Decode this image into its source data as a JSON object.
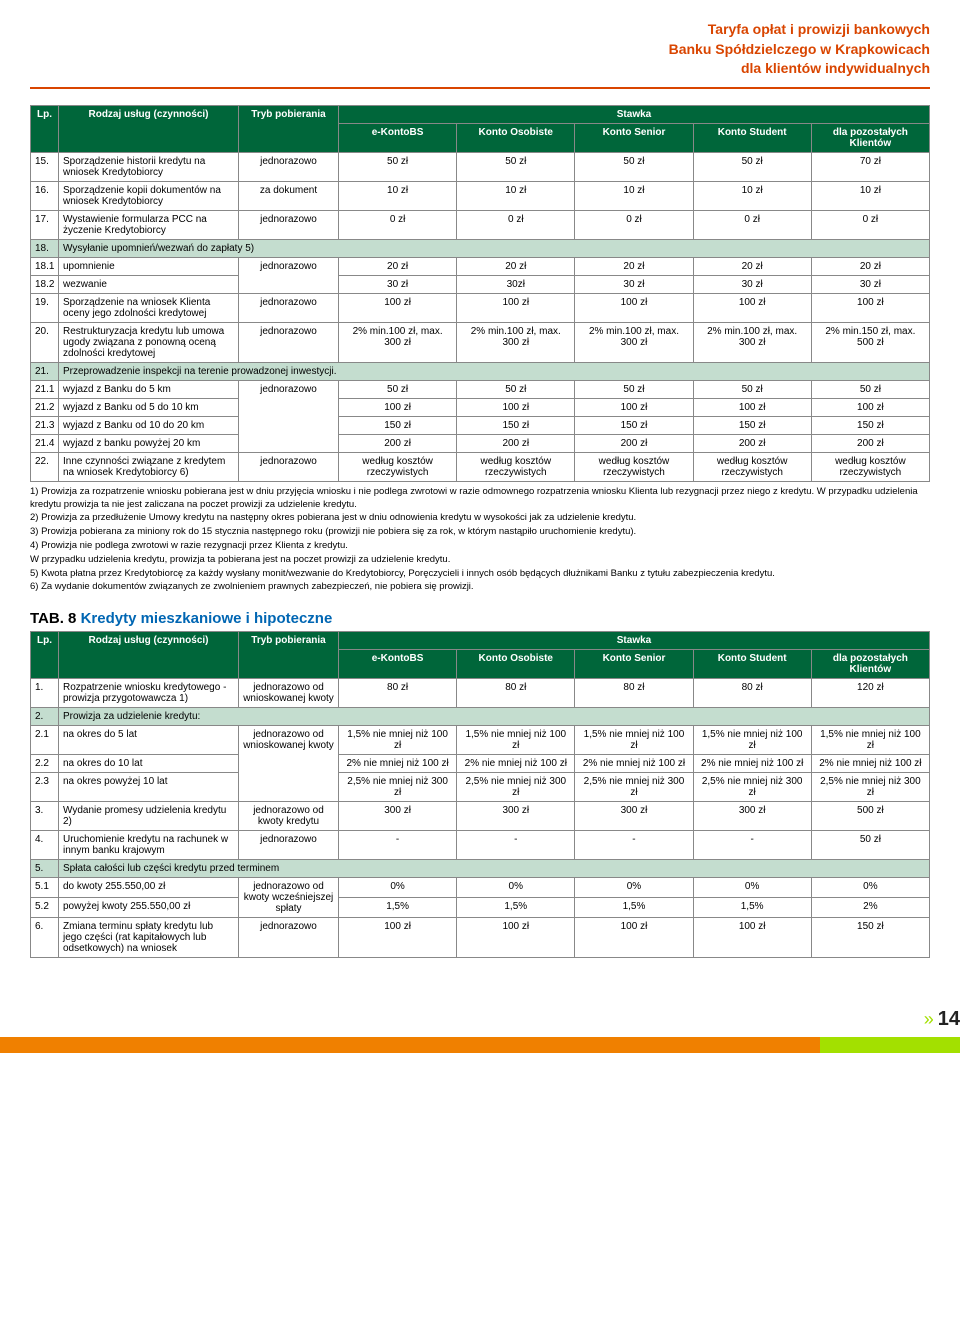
{
  "header": {
    "line1": "Taryfa opłat i prowizji bankowych",
    "line2": "Banku Spółdzielczego w Krapkowicach",
    "line3": "dla klientów indywidualnych"
  },
  "headers": {
    "lp": "Lp.",
    "rodzaj": "Rodzaj usług (czynności)",
    "tryb": "Tryb pobierania",
    "stawka": "Stawka",
    "ekonto": "e-KontoBS",
    "osobiste": "Konto Osobiste",
    "senior": "Konto Senior",
    "student": "Konto Student",
    "pozostali": "dla pozostałych Klientów"
  },
  "t1": {
    "r15": {
      "lp": "15.",
      "d": "Sporządzenie historii kredytu na wniosek Kredytobiorcy",
      "t": "jednorazowo",
      "v": [
        "50 zł",
        "50 zł",
        "50 zł",
        "50 zł",
        "70 zł"
      ]
    },
    "r16": {
      "lp": "16.",
      "d": "Sporządzenie kopii dokumentów na wniosek Kredytobiorcy",
      "t": "za dokument",
      "v": [
        "10 zł",
        "10 zł",
        "10 zł",
        "10 zł",
        "10 zł"
      ]
    },
    "r17": {
      "lp": "17.",
      "d": "Wystawienie formularza PCC na życzenie Kredytobiorcy",
      "t": "jednorazowo",
      "v": [
        "0 zł",
        "0 zł",
        "0 zł",
        "0 zł",
        "0 zł"
      ]
    },
    "r18": {
      "lp": "18.",
      "d": "Wysyłanie upomnień/wezwań do zapłaty 5)"
    },
    "r18_1": {
      "lp": "18.1",
      "d": "upomnienie",
      "t": "jednorazowo",
      "v": [
        "20 zł",
        "20 zł",
        "20 zł",
        "20 zł",
        "20 zł"
      ]
    },
    "r18_2": {
      "lp": "18.2",
      "d": "wezwanie",
      "v": [
        "30 zł",
        "30zł",
        "30 zł",
        "30 zł",
        "30 zł"
      ]
    },
    "r19": {
      "lp": "19.",
      "d": "Sporządzenie na wniosek Klienta oceny jego zdolności kredytowej",
      "t": "jednorazowo",
      "v": [
        "100 zł",
        "100 zł",
        "100 zł",
        "100 zł",
        "100 zł"
      ]
    },
    "r20": {
      "lp": "20.",
      "d": "Restrukturyzacja kredytu lub umowa ugody związana z ponowną oceną zdolności kredytowej",
      "t": "jednorazowo",
      "v": [
        "2% min.100 zł, max. 300 zł",
        "2% min.100 zł, max. 300 zł",
        "2% min.100 zł, max. 300 zł",
        "2% min.100 zł, max. 300 zł",
        "2% min.150 zł, max. 500 zł"
      ]
    },
    "r21": {
      "lp": "21.",
      "d": "Przeprowadzenie inspekcji na terenie prowadzonej inwestycji."
    },
    "r21_1": {
      "lp": "21.1",
      "d": "wyjazd z Banku do 5 km",
      "t": "jednorazowo",
      "v": [
        "50 zł",
        "50 zł",
        "50 zł",
        "50 zł",
        "50 zł"
      ]
    },
    "r21_2": {
      "lp": "21.2",
      "d": "wyjazd z Banku od 5 do 10 km",
      "v": [
        "100 zł",
        "100 zł",
        "100 zł",
        "100 zł",
        "100 zł"
      ]
    },
    "r21_3": {
      "lp": "21.3",
      "d": "wyjazd z Banku od 10 do 20 km",
      "v": [
        "150 zł",
        "150 zł",
        "150 zł",
        "150 zł",
        "150 zł"
      ]
    },
    "r21_4": {
      "lp": "21.4",
      "d": "wyjazd z banku powyżej 20 km",
      "v": [
        "200 zł",
        "200 zł",
        "200 zł",
        "200 zł",
        "200 zł"
      ]
    },
    "r22": {
      "lp": "22.",
      "d": "Inne czynności związane z kredytem na wniosek Kredytobiorcy 6)",
      "t": "jednorazowo",
      "v": [
        "według kosztów rzeczywistych",
        "według kosztów rzeczywistych",
        "według kosztów rzeczywistych",
        "według kosztów rzeczywistych",
        "według kosztów rzeczywistych"
      ]
    }
  },
  "notes1": [
    "1) Prowizja za rozpatrzenie wniosku pobierana jest w dniu przyjęcia wniosku i nie podlega zwrotowi w razie odmownego rozpatrzenia wniosku Klienta lub rezygnacji przez niego z kredytu. W przypadku udzielenia kredytu prowizja ta nie jest zaliczana na poczet prowizji za udzielenie kredytu.",
    "2) Prowizja za przedłużenie Umowy kredytu na następny okres pobierana jest w dniu odnowienia kredytu w wysokości jak za udzielenie kredytu.",
    "3) Prowizja pobierana za miniony rok do 15 stycznia następnego roku (prowizji nie pobiera się za rok, w którym nastąpiło uruchomienie kredytu).",
    "4) Prowizja nie podlega zwrotowi w razie rezygnacji przez Klienta z kredytu.",
    "    W przypadku udzielenia kredytu, prowizja ta pobierana jest na poczet prowizji za udzielenie kredytu.",
    "5) Kwota płatna przez Kredytobiorcę za każdy wysłany monit/wezwanie do Kredytobiorcy, Poręczycieli i innych osób będących dłużnikami Banku z tytułu zabezpieczenia kredytu.",
    "6) Za wydanie dokumentów związanych ze zwolnieniem prawnych zabezpieczeń, nie pobiera się prowizji."
  ],
  "tab8": {
    "black": "TAB. 8 ",
    "blue": "Kredyty mieszkaniowe i hipoteczne"
  },
  "t2": {
    "r1": {
      "lp": "1.",
      "d": "Rozpatrzenie wniosku kredytowego - prowizja przygotowawcza 1)",
      "t": "jednorazowo od wnioskowanej kwoty",
      "v": [
        "80 zł",
        "80 zł",
        "80 zł",
        "80 zł",
        "120 zł"
      ]
    },
    "r2": {
      "lp": "2.",
      "d": "Prowizja za udzielenie kredytu:"
    },
    "r2_1": {
      "lp": "2.1",
      "d": "na okres do 5 lat",
      "t": "jednorazowo od wnioskowanej kwoty",
      "v": [
        "1,5% nie mniej niż      100 zł",
        "1,5% nie mniej niż        100 zł",
        "1,5% nie mniej niż      100 zł",
        "1,5% nie mniej niż        100 zł",
        "1,5% nie mniej niż        100 zł"
      ]
    },
    "r2_2": {
      "lp": "2.2",
      "d": "na okres do 10 lat",
      "v": [
        "2% nie mniej niż 100 zł",
        "2% nie mniej niż 100 zł",
        "2% nie mniej niż 100 zł",
        "2% nie mniej niż 100 zł",
        "2% nie mniej niż 100 zł"
      ]
    },
    "r2_3": {
      "lp": "2.3",
      "d": "na okres powyżej 10 lat",
      "v": [
        "2,5% nie mniej niż 300 zł",
        "2,5% nie mniej niż 300 zł",
        "2,5% nie mniej niż 300 zł",
        "2,5% nie mniej niż 300 zł",
        "2,5% nie mniej niż 300 zł"
      ]
    },
    "r3": {
      "lp": "3.",
      "d": "Wydanie promesy udzielenia kredytu 2)",
      "t": "jednorazowo od kwoty kredytu",
      "v": [
        "300 zł",
        "300 zł",
        "300 zł",
        "300 zł",
        "500 zł"
      ]
    },
    "r4": {
      "lp": "4.",
      "d": "Uruchomienie kredytu na rachunek     w innym banku krajowym",
      "t": "jednorazowo",
      "v": [
        "-",
        "-",
        "-",
        "-",
        "50 zł"
      ]
    },
    "r5": {
      "lp": "5.",
      "d": "Spłata całości lub części kredytu przed terminem"
    },
    "r5_1": {
      "lp": "5.1",
      "d": "do kwoty 255.550,00 zł",
      "t": "jednorazowo od kwoty wcześniejszej spłaty",
      "v": [
        "0%",
        "0%",
        "0%",
        "0%",
        "0%"
      ]
    },
    "r5_2": {
      "lp": "5.2",
      "d": "powyżej kwoty 255.550,00 zł",
      "v": [
        "1,5%",
        "1,5%",
        "1,5%",
        "1,5%",
        "2%"
      ]
    },
    "r6": {
      "lp": "6.",
      "d": "Zmiana terminu spłaty kredytu lub jego części (rat kapitałowych lub odsetkowych) na wniosek",
      "t": "jednorazowo",
      "v": [
        "100 zł",
        "100 zł",
        "100 zł",
        "100 zł",
        "150 zł"
      ]
    }
  },
  "footer": {
    "page": "14"
  }
}
